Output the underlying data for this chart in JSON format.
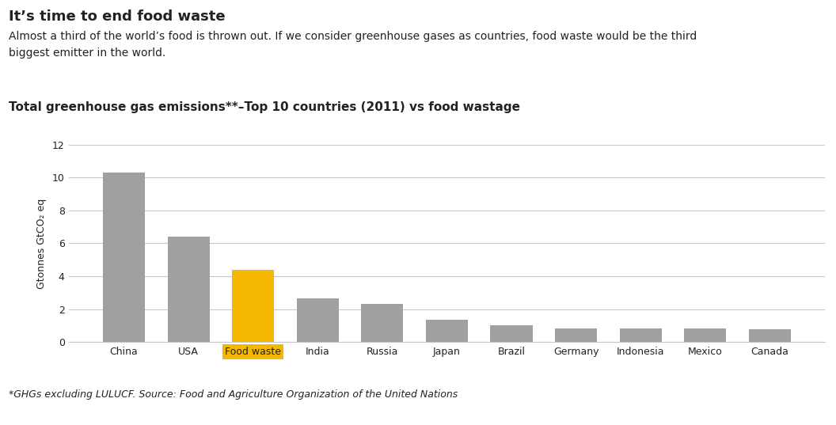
{
  "title_main": "It’s time to end food waste",
  "subtitle_line1": "Almost a third of the world’s food is thrown out. If we consider greenhouse gases as countries, food waste would be the third",
  "subtitle_line2": "biggest emitter in the world.",
  "chart_title": "Total greenhouse gas emissions**–Top 10 countries (2011) vs food wastage",
  "categories": [
    "China",
    "USA",
    "Food waste",
    "India",
    "Russia",
    "Japan",
    "Brazil",
    "Germany",
    "Indonesia",
    "Mexico",
    "Canada"
  ],
  "values": [
    10.3,
    6.4,
    4.4,
    2.65,
    2.3,
    1.35,
    1.0,
    0.85,
    0.85,
    0.85,
    0.8
  ],
  "bar_colors": [
    "#a0a0a0",
    "#a0a0a0",
    "#f5b800",
    "#a0a0a0",
    "#a0a0a0",
    "#a0a0a0",
    "#a0a0a0",
    "#a0a0a0",
    "#a0a0a0",
    "#a0a0a0",
    "#a0a0a0"
  ],
  "ylabel": "Gtonnes GtCO₂ eq",
  "ylim": [
    0,
    12
  ],
  "yticks": [
    0,
    2,
    4,
    6,
    8,
    10,
    12
  ],
  "footnote": "*GHGs excluding LULUCF. Source: Food and Agriculture Organization of the United Nations",
  "food_waste_label_bg": "#f5b800",
  "food_waste_label_text": "#222222",
  "background_color": "#ffffff",
  "text_color": "#222222",
  "grid_color": "#c8c8c8",
  "bar_edge_color": "none",
  "title_fontsize": 13,
  "subtitle_fontsize": 10,
  "chart_title_fontsize": 11,
  "tick_fontsize": 9,
  "ylabel_fontsize": 9,
  "footnote_fontsize": 9
}
